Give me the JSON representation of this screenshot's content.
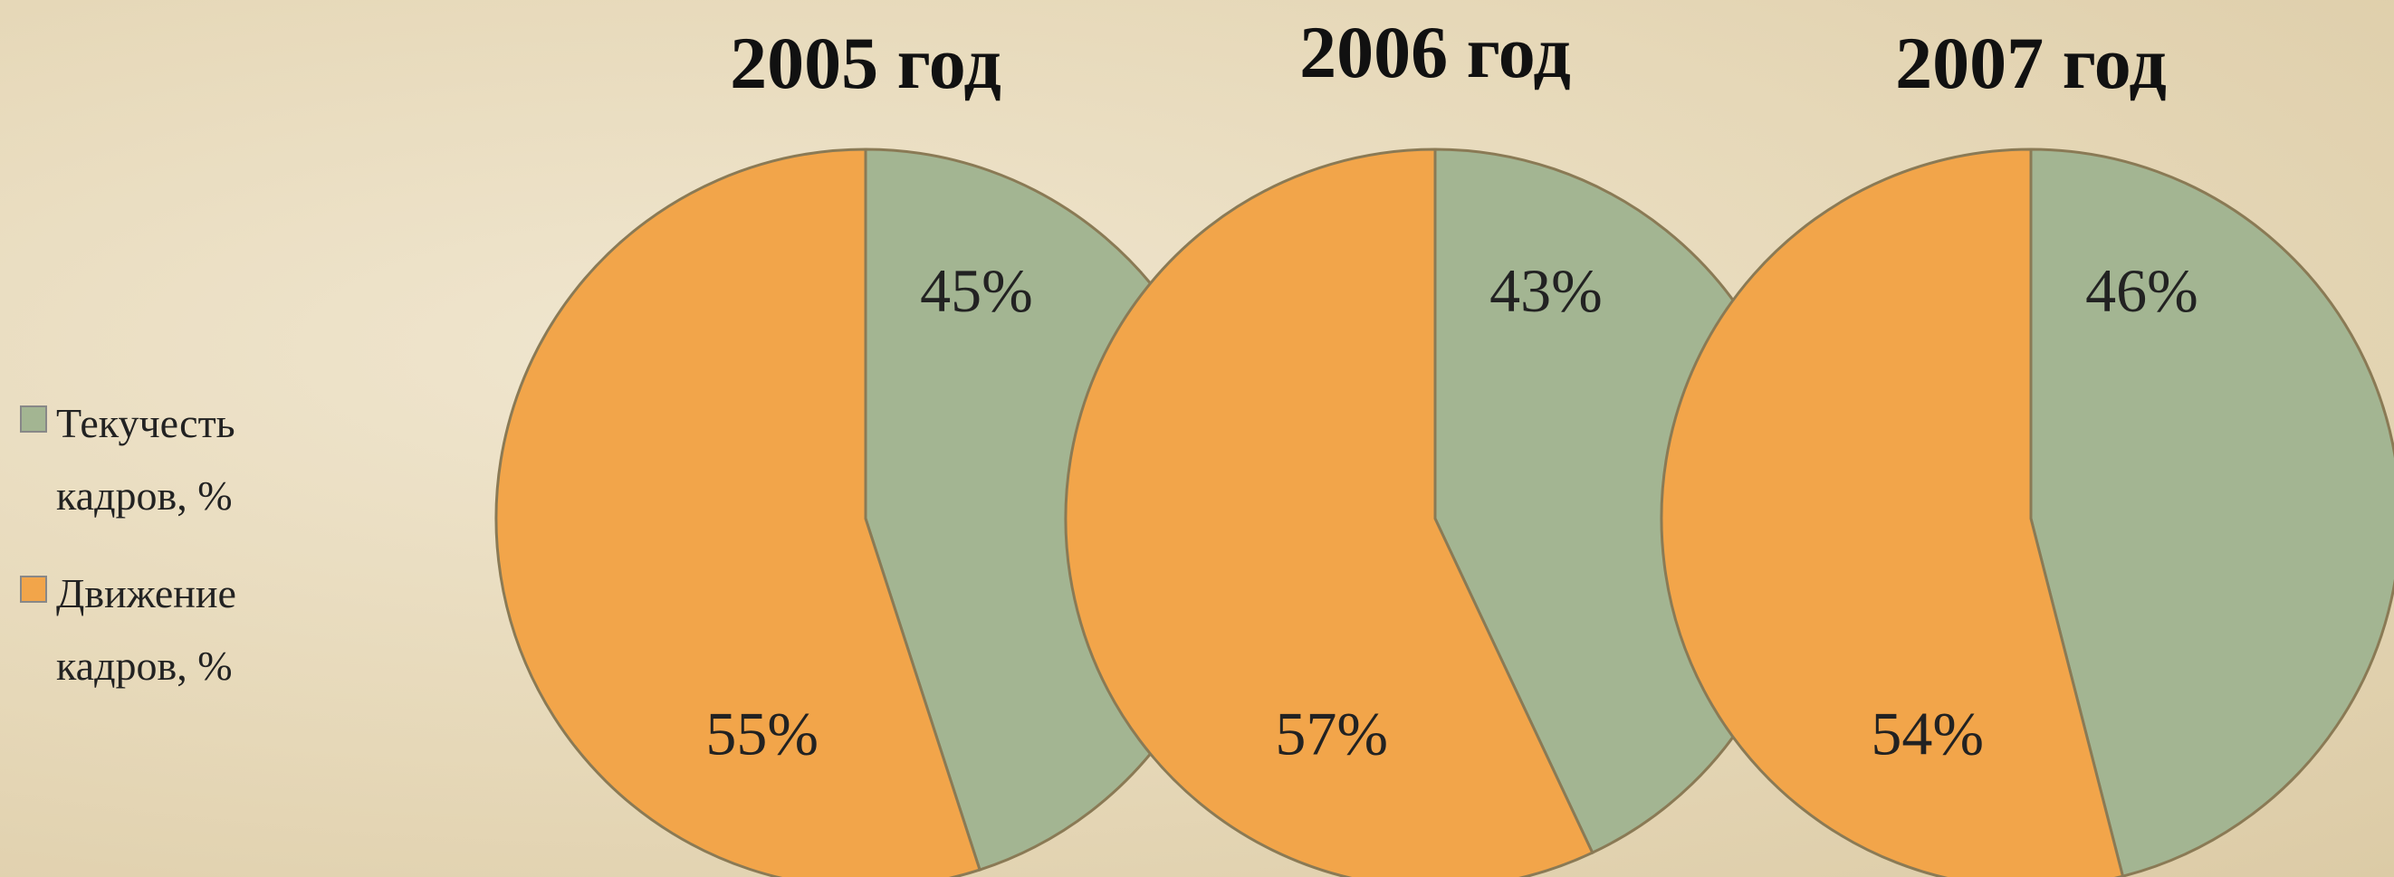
{
  "chart_data": [
    {
      "type": "pie",
      "title": "2005 год",
      "categories": [
        "Текучесть кадров, %",
        "Движение кадров, %"
      ],
      "values": [
        45,
        55
      ],
      "value_labels": [
        "45%",
        "55%"
      ],
      "colors": [
        "#a3b592",
        "#f2a54a"
      ]
    },
    {
      "type": "pie",
      "title": "2006 год",
      "categories": [
        "Текучесть кадров, %",
        "Движение кадров, %"
      ],
      "values": [
        43,
        57
      ],
      "value_labels": [
        "43%",
        "57%"
      ],
      "colors": [
        "#a3b592",
        "#f2a54a"
      ]
    },
    {
      "type": "pie",
      "title": "2007 год",
      "categories": [
        "Текучесть кадров, %",
        "Движение кадров, %"
      ],
      "values": [
        46,
        54
      ],
      "value_labels": [
        "46%",
        "54%"
      ],
      "colors": [
        "#a3b592",
        "#f2a54a"
      ]
    }
  ]
}
